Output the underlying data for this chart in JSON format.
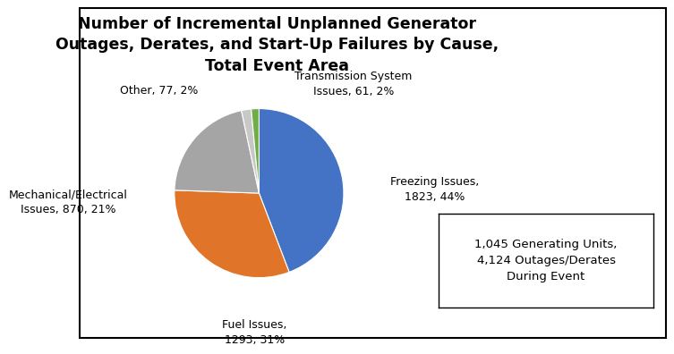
{
  "title": "Number of Incremental Unplanned Generator\nOutages, Derates, and Start-Up Failures by Cause,\nTotal Event Area",
  "slices": [
    {
      "label": "Freezing Issues,\n1823, 44%",
      "value": 1823,
      "color": "#4472C4"
    },
    {
      "label": "Fuel Issues,\n1293, 31%",
      "value": 1293,
      "color": "#E07428"
    },
    {
      "label": "Mechanical/Electrical\nIssues, 870, 21%",
      "value": 870,
      "color": "#A5A5A5"
    },
    {
      "label": "Other, 77, 2%",
      "value": 77,
      "color": "#C8C8C8"
    },
    {
      "label": "Transmission System\nIssues, 61, 2%",
      "value": 61,
      "color": "#70AD47"
    }
  ],
  "annotation_text": "1,045 Generating Units,\n4,124 Outages/Derates\nDuring Event",
  "background_color": "#FFFFFF",
  "border_color": "#000000",
  "title_fontsize": 12.5,
  "label_fontsize": 9.0,
  "annotation_fontsize": 9.5,
  "label_positions": [
    [
      1.55,
      0.05,
      "left",
      "center"
    ],
    [
      -0.05,
      -1.48,
      "center",
      "top"
    ],
    [
      -1.55,
      -0.1,
      "right",
      "center"
    ],
    [
      -0.72,
      1.22,
      "right",
      "center"
    ],
    [
      0.42,
      1.3,
      "left",
      "center"
    ]
  ]
}
